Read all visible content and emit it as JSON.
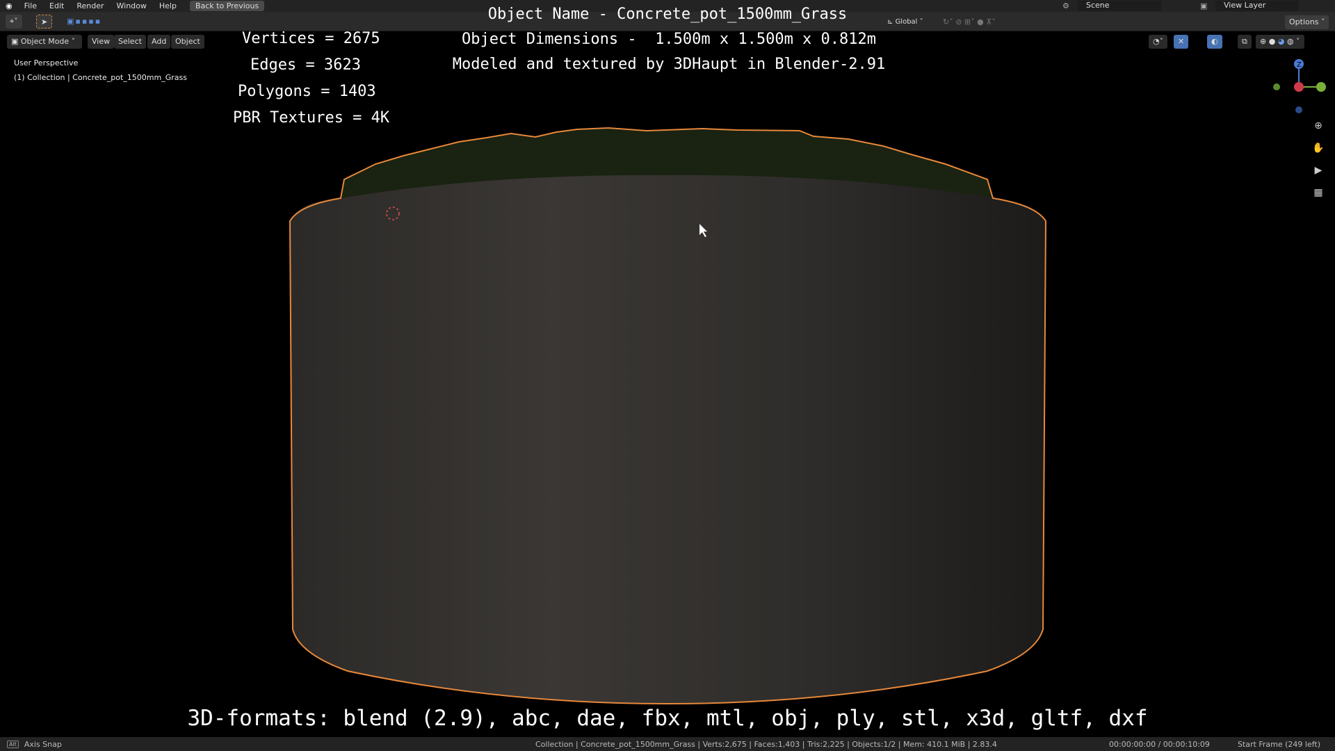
{
  "menu": {
    "items": [
      "File",
      "Edit",
      "Render",
      "Window",
      "Help"
    ],
    "back": "Back to Previous",
    "scene": "Scene",
    "view_layer": "View Layer"
  },
  "header": {
    "orientation": "Global",
    "options": "Options"
  },
  "viewport_header": {
    "mode": "Object Mode",
    "view": "View",
    "select": "Select",
    "add": "Add",
    "object": "Object"
  },
  "viewport": {
    "perspective": "User Perspective",
    "collection": "(1) Collection | Concrete_pot_1500mm_Grass"
  },
  "overlay": {
    "title": "Object Name - Concrete_pot_1500mm_Grass",
    "dimensions": "Object Dimensions -  1.500m x 1.500m x 0.812m",
    "credit": "Modeled and textured by 3DHaupt in Blender-2.91",
    "vertices": "Vertices = 2675",
    "edges": "Edges = 3623",
    "polygons": "Polygons = 1403",
    "textures": "PBR Textures = 4K",
    "formats": "3D-formats: blend (2.9), abc, dae, fbx, mtl, obj, ply, stl, x3d, gltf, dxf"
  },
  "gizmo": {
    "z": "Z"
  },
  "status": {
    "hint": "Axis Snap",
    "stats": "Collection | Concrete_pot_1500mm_Grass | Verts:2,675 | Faces:1,403 | Tris:2,225 | Objects:1/2 | Mem: 410.1 MiB | 2.83.4",
    "time": "00:00:00:00 / 00:00:10:09",
    "frame": "Start Frame (249 left)"
  },
  "colors": {
    "selection_outline": "#e8883a",
    "accent": "#4772b3"
  }
}
